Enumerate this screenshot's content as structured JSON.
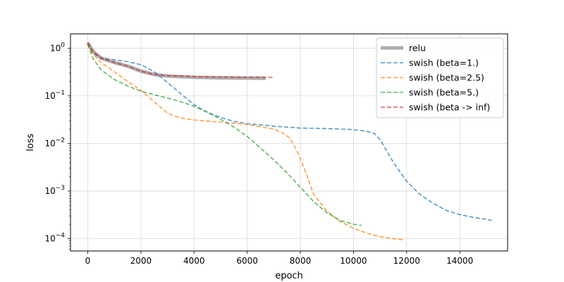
{
  "chart_data": {
    "type": "line",
    "xlabel": "epoch",
    "ylabel": "loss",
    "xlim": [
      -650,
      15800
    ],
    "ylim": [
      5.5e-05,
      2.0
    ],
    "yscale": "log",
    "grid": true,
    "legend_position": "top-right",
    "x_ticks": [
      {
        "value": 0,
        "label": "0"
      },
      {
        "value": 2000,
        "label": "2000"
      },
      {
        "value": 4000,
        "label": "4000"
      },
      {
        "value": 6000,
        "label": "6000"
      },
      {
        "value": 8000,
        "label": "8000"
      },
      {
        "value": 10000,
        "label": "10000"
      },
      {
        "value": 12000,
        "label": "12000"
      },
      {
        "value": 14000,
        "label": "14000"
      }
    ],
    "y_ticks": [
      {
        "value": 0.0001,
        "base": "10",
        "exp": "−4"
      },
      {
        "value": 0.001,
        "base": "10",
        "exp": "−3"
      },
      {
        "value": 0.01,
        "base": "10",
        "exp": "−2"
      },
      {
        "value": 0.1,
        "base": "10",
        "exp": "−1"
      },
      {
        "value": 1,
        "base": "10",
        "exp": "0"
      }
    ],
    "series": [
      {
        "name": "relu",
        "color": "#a9a9a9",
        "style": "solid-thick",
        "x": [
          0,
          200,
          500,
          1000,
          1500,
          2000,
          2500,
          3000,
          4000,
          5000,
          6000,
          6700
        ],
        "y": [
          1.3,
          0.85,
          0.62,
          0.5,
          0.42,
          0.33,
          0.28,
          0.26,
          0.245,
          0.238,
          0.235,
          0.233
        ]
      },
      {
        "name": "swish (beta=1.)",
        "color": "#1f77b4",
        "style": "dashed",
        "x": [
          0,
          200,
          500,
          1000,
          1500,
          2000,
          2500,
          3000,
          3500,
          4000,
          4500,
          5000,
          5500,
          6000,
          7000,
          8000,
          9000,
          10000,
          10500,
          10800,
          11000,
          11500,
          12000,
          12500,
          13000,
          13500,
          14000,
          14500,
          15000,
          15200
        ],
        "y": [
          1.3,
          0.8,
          0.62,
          0.57,
          0.52,
          0.45,
          0.32,
          0.19,
          0.11,
          0.065,
          0.045,
          0.035,
          0.029,
          0.026,
          0.023,
          0.021,
          0.0205,
          0.0195,
          0.018,
          0.016,
          0.012,
          0.004,
          0.0016,
          0.00085,
          0.00055,
          0.00039,
          0.00032,
          0.00028,
          0.000255,
          0.00024
        ]
      },
      {
        "name": "swish (beta=2.5)",
        "color": "#ff7f0e",
        "style": "dashed",
        "x": [
          0,
          200,
          500,
          1000,
          1500,
          2000,
          2500,
          3000,
          3500,
          4000,
          5000,
          6000,
          7000,
          7300,
          7600,
          7900,
          8200,
          8500,
          9000,
          9500,
          10000,
          10500,
          11000,
          11500,
          11850
        ],
        "y": [
          1.2,
          0.75,
          0.5,
          0.32,
          0.2,
          0.13,
          0.075,
          0.043,
          0.034,
          0.031,
          0.028,
          0.025,
          0.02,
          0.017,
          0.013,
          0.0065,
          0.0025,
          0.00085,
          0.00038,
          0.00023,
          0.000165,
          0.00013,
          0.00011,
          0.0001,
          9.5e-05
        ]
      },
      {
        "name": "swish (beta=5.)",
        "color": "#2ca02c",
        "style": "dashed",
        "x": [
          0,
          200,
          500,
          1000,
          1500,
          2000,
          2500,
          3000,
          3500,
          4000,
          4500,
          5000,
          5500,
          6000,
          6500,
          7000,
          7500,
          8000,
          8500,
          9000,
          9500,
          10000,
          10300
        ],
        "y": [
          1.2,
          0.6,
          0.35,
          0.22,
          0.16,
          0.125,
          0.105,
          0.09,
          0.075,
          0.06,
          0.045,
          0.032,
          0.022,
          0.014,
          0.008,
          0.0045,
          0.0024,
          0.0012,
          0.0006,
          0.00035,
          0.00024,
          0.0002,
          0.00019
        ]
      },
      {
        "name": "swish (beta -> inf)",
        "color": "#d62728",
        "style": "dashed",
        "x": [
          0,
          200,
          500,
          1000,
          1500,
          2000,
          2500,
          3000,
          4000,
          5000,
          6000,
          7000
        ],
        "y": [
          1.3,
          0.85,
          0.62,
          0.5,
          0.42,
          0.33,
          0.28,
          0.265,
          0.253,
          0.247,
          0.245,
          0.244
        ]
      }
    ]
  }
}
